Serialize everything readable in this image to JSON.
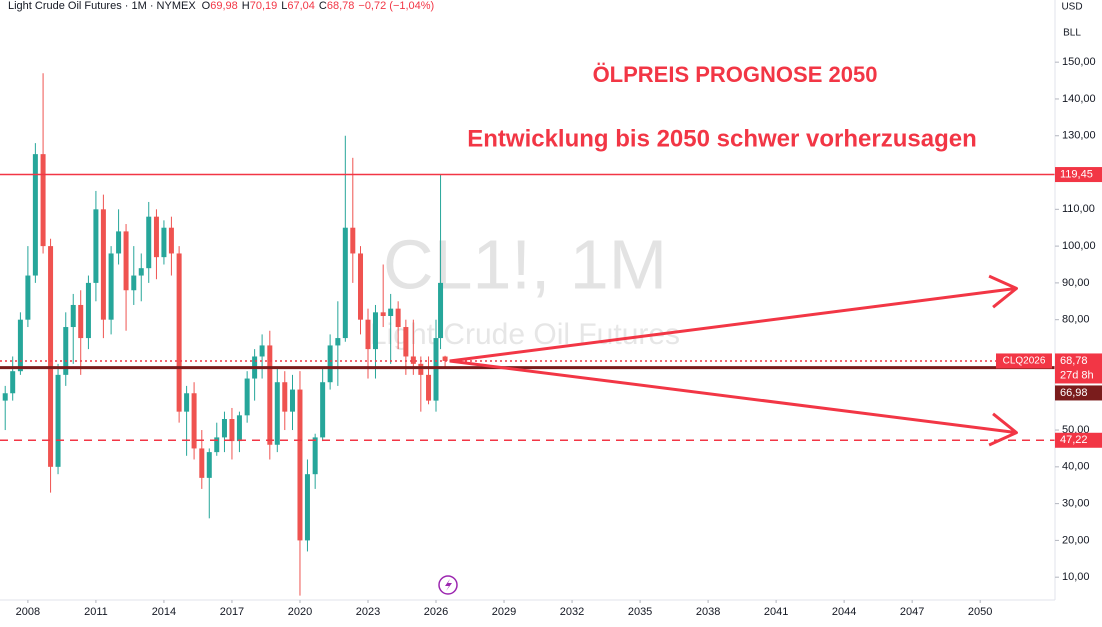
{
  "header": {
    "symbol": "Light Crude Oil Futures · 1M · NYMEX",
    "ohlc": [
      {
        "key": "O",
        "value": "69,98"
      },
      {
        "key": "H",
        "value": "70,19"
      },
      {
        "key": "L",
        "value": "67,04"
      },
      {
        "key": "C",
        "value": "68,78"
      }
    ],
    "change": "−0,72 (−1,04%)"
  },
  "axis_panel": {
    "currency": "USD",
    "unit": "BLL"
  },
  "chart_data": {
    "type": "candlestick",
    "title": "ÖLPREIS PROGNOSE 2050",
    "subtitle": "Entwicklung bis 2050 schwer vorherzusagen",
    "watermark": {
      "symbol": "CL1!, 1M",
      "name": "Light Crude Oil Futures"
    },
    "up_color": "#26a69a",
    "down_color": "#ef5350",
    "grid": false,
    "xlim": [
      2006.77,
      2053.3
    ],
    "ylim": [
      3.8,
      166.9
    ],
    "xticks": [
      2008,
      2011,
      2014,
      2017,
      2020,
      2023,
      2026,
      2029,
      2032,
      2035,
      2038,
      2041,
      2044,
      2047,
      2050
    ],
    "yticks": [
      {
        "value": 10,
        "label": "10,00"
      },
      {
        "value": 20,
        "label": "20,00"
      },
      {
        "value": 30,
        "label": "30,00"
      },
      {
        "value": 40,
        "label": "40,00"
      },
      {
        "value": 50,
        "label": "50,00"
      },
      {
        "value": 80,
        "label": "80,00"
      },
      {
        "value": 90,
        "label": "90,00"
      },
      {
        "value": 100,
        "label": "100,00"
      },
      {
        "value": 110,
        "label": "110,00"
      },
      {
        "value": 120,
        "label": "120,00"
      },
      {
        "value": 130,
        "label": "130,00"
      },
      {
        "value": 140,
        "label": "140,00"
      },
      {
        "value": 150,
        "label": "150,00"
      }
    ],
    "x": [
      2007.0,
      2007.33,
      2007.67,
      2008.0,
      2008.33,
      2008.67,
      2009.0,
      2009.33,
      2009.67,
      2010.0,
      2010.33,
      2010.67,
      2011.0,
      2011.33,
      2011.67,
      2012.0,
      2012.33,
      2012.67,
      2013.0,
      2013.33,
      2013.67,
      2014.0,
      2014.33,
      2014.67,
      2015.0,
      2015.33,
      2015.67,
      2016.0,
      2016.33,
      2016.67,
      2017.0,
      2017.33,
      2017.67,
      2018.0,
      2018.33,
      2018.67,
      2019.0,
      2019.33,
      2019.67,
      2020.0,
      2020.33,
      2020.67,
      2021.0,
      2021.33,
      2021.67,
      2022.0,
      2022.33,
      2022.67,
      2023.0,
      2023.33,
      2023.67,
      2024.0,
      2024.33,
      2024.67,
      2025.0,
      2025.33,
      2025.67,
      2026.0,
      2026.2,
      2026.4
    ],
    "open": [
      58,
      60,
      66,
      80,
      92,
      125,
      100,
      40,
      65,
      78,
      84,
      75,
      90,
      110,
      80,
      98,
      104,
      88,
      92,
      94,
      108,
      97,
      105,
      98,
      55,
      60,
      45,
      37,
      44,
      48,
      53,
      47,
      54,
      64,
      70,
      73,
      46,
      63,
      55,
      61,
      20,
      38,
      48,
      63,
      73,
      75,
      105,
      98,
      80,
      72,
      82,
      81,
      83,
      78,
      70,
      68,
      65,
      58,
      75,
      69.98
    ],
    "high": [
      62,
      70,
      82,
      100,
      128,
      147,
      102,
      68,
      82,
      87,
      88,
      92,
      115,
      114,
      100,
      110,
      106,
      100,
      98,
      112,
      110,
      107,
      108,
      100,
      62,
      63,
      50,
      45,
      52,
      55,
      56,
      55,
      66,
      72,
      76,
      77,
      67,
      66,
      65,
      66,
      42,
      49,
      67,
      76,
      85,
      130,
      124,
      100,
      83,
      84,
      95,
      87,
      85,
      80,
      80,
      70,
      70,
      80,
      119.45,
      70.19
    ],
    "low": [
      50,
      58,
      65,
      78,
      90,
      98,
      33,
      38,
      62,
      68,
      65,
      72,
      85,
      75,
      76,
      95,
      77,
      84,
      85,
      90,
      91,
      95,
      92,
      52,
      43,
      42,
      34,
      26,
      43,
      44,
      42,
      44,
      52,
      58,
      64,
      42,
      44,
      50,
      50,
      5,
      17,
      34,
      47,
      61,
      62,
      74,
      90,
      76,
      64,
      64,
      78,
      68,
      72,
      65,
      65,
      55,
      57,
      55,
      72,
      67.04
    ],
    "close": [
      60,
      66,
      80,
      92,
      125,
      100,
      40,
      65,
      78,
      84,
      75,
      90,
      110,
      80,
      98,
      104,
      88,
      92,
      94,
      108,
      97,
      105,
      98,
      55,
      60,
      45,
      37,
      44,
      48,
      53,
      47,
      54,
      64,
      70,
      73,
      46,
      63,
      55,
      61,
      20,
      38,
      48,
      63,
      73,
      75,
      105,
      98,
      80,
      72,
      82,
      81,
      83,
      78,
      70,
      68,
      65,
      58,
      75,
      90,
      68.78
    ],
    "levels": [
      {
        "value": 119.45,
        "label": "119,45",
        "color": "#f23645",
        "style": "solid"
      },
      {
        "value": 68.78,
        "label": "68,78",
        "tag": "CLQ2026",
        "countdown": "27d 8h",
        "color": "#f23645",
        "style": "dotted"
      },
      {
        "value": 66.98,
        "label": "66,98",
        "color": "#7a1c1c",
        "style": "solid"
      },
      {
        "value": 47.22,
        "label": "47,22",
        "color": "#f23645",
        "style": "dashed"
      }
    ],
    "projections": [
      {
        "x": [
          2026.6,
          2051.6
        ],
        "y": [
          68.78,
          88.5
        ]
      },
      {
        "x": [
          2026.6,
          2051.6
        ],
        "y": [
          68.78,
          49.3
        ]
      }
    ],
    "projection_color": "#f23645"
  }
}
